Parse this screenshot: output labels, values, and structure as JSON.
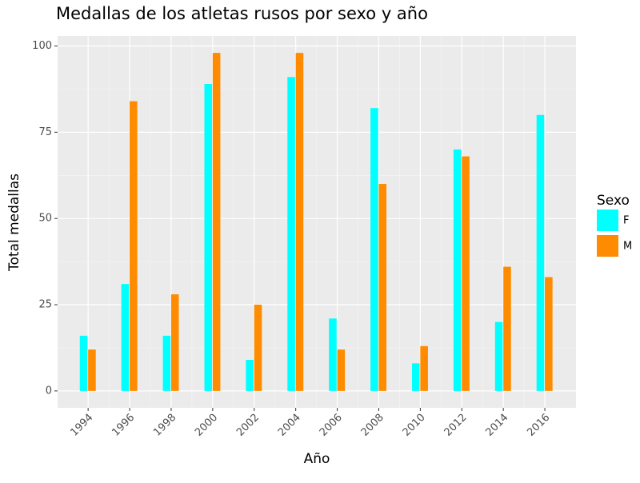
{
  "chart_data": {
    "type": "bar",
    "title": "Medallas de los atletas rusos por sexo y año",
    "x_label": "Año",
    "y_label": "Total medallas",
    "x": [
      1994,
      1996,
      1998,
      2000,
      2002,
      2004,
      2006,
      2008,
      2010,
      2012,
      2014,
      2016
    ],
    "series": [
      {
        "name": "F",
        "color": "#00ffff",
        "values": [
          16,
          31,
          16,
          89,
          9,
          91,
          21,
          82,
          8,
          70,
          20,
          80
        ]
      },
      {
        "name": "M",
        "color": "#ff8c00",
        "values": [
          12,
          84,
          28,
          98,
          25,
          98,
          12,
          60,
          13,
          68,
          36,
          33
        ]
      }
    ],
    "legend_title": "Sexo",
    "legend_position": "right",
    "xlim": [
      1992.53,
      2017.5
    ],
    "xticks": [
      1994,
      1996,
      1998,
      2000,
      2002,
      2004,
      2006,
      2008,
      2010,
      2012,
      2014,
      2016
    ],
    "ylim": [
      -4.9,
      102.9
    ],
    "yticks": [
      0,
      25,
      50,
      75,
      100
    ],
    "grid": true
  }
}
